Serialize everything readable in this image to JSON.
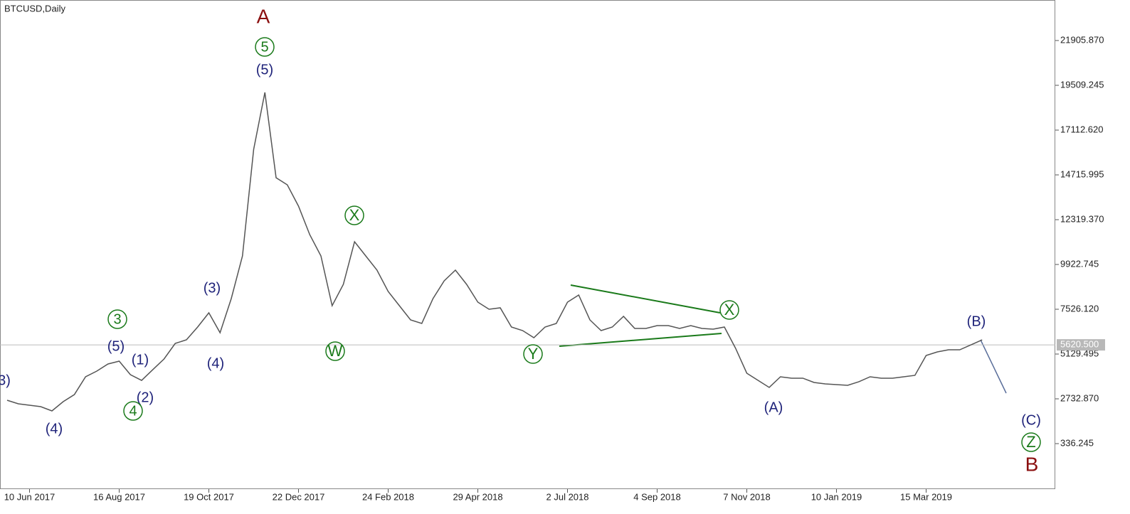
{
  "chart_data": {
    "type": "line",
    "title": "BTCUSD,Daily",
    "color": "#555555",
    "categories": [
      null,
      null,
      "10 Jun 2017",
      null,
      null,
      null,
      null,
      null,
      null,
      null,
      "16 Aug 2017",
      null,
      null,
      null,
      null,
      null,
      null,
      null,
      "19 Oct 2017",
      null,
      null,
      null,
      null,
      null,
      null,
      null,
      "22 Dec 2017",
      null,
      null,
      null,
      null,
      null,
      null,
      null,
      "24 Feb 2018",
      null,
      null,
      null,
      null,
      null,
      null,
      null,
      "29 Apr 2018",
      null,
      null,
      null,
      null,
      null,
      null,
      null,
      "2 Jul 2018",
      null,
      null,
      null,
      null,
      null,
      null,
      null,
      "4 Sep 2018",
      null,
      null,
      null,
      null,
      null,
      null,
      null,
      "7 Nov 2018",
      null,
      null,
      null,
      null,
      null,
      null,
      null,
      "10 Jan 2019",
      null,
      null,
      null,
      null,
      null,
      null,
      null,
      "15 Mar 2019",
      null,
      null,
      null,
      null,
      null
    ],
    "values": [
      2658,
      2467,
      2390,
      2314,
      2086,
      2580,
      2960,
      3913,
      4217,
      4597,
      4750,
      4027,
      3720,
      4295,
      4864,
      5700,
      5890,
      6575,
      7337,
      6270,
      8097,
      10380,
      16086,
      19128,
      14564,
      14184,
      13043,
      11521,
      10380,
      7717,
      8858,
      11140,
      10380,
      9620,
      8478,
      7717,
      6956,
      6766,
      8097,
      9049,
      9620,
      8858,
      7907,
      7527,
      7603,
      6575,
      6385,
      6005,
      6575,
      6766,
      7907,
      8288,
      6956,
      6385,
      6575,
      7146,
      6499,
      6499,
      6652,
      6652,
      6499,
      6652,
      6499,
      6462,
      6575,
      5434,
      4103,
      3723,
      3343,
      3913,
      3837,
      3837,
      3609,
      3533,
      3495,
      3457,
      3647,
      3913,
      3837,
      3837,
      3913,
      3989,
      5054,
      5244,
      5358,
      5358,
      5624,
      5890
    ],
    "ylim": [
      -2098,
      24074
    ],
    "yticks": [
      336.245,
      {
        "value": 2732.87,
        "label": "2732.870"
      },
      5129.495,
      {
        "value": 7526.12,
        "label": "7526.120"
      },
      9922.745,
      {
        "value": 12319.37,
        "label": "12319.370"
      },
      14715.995,
      {
        "value": 17112.62,
        "label": "17112.620"
      },
      19509.245,
      {
        "value": 21905.87,
        "label": "21905.870"
      }
    ],
    "last_price": {
      "value": 5620.5,
      "label": "5620.500"
    },
    "annotations": [
      {
        "text": "A",
        "color": "#8b1010",
        "circled": false
      },
      {
        "text": "5",
        "color": "#1a7a1a",
        "circled": true
      },
      {
        "text": "(5)",
        "color": "#1f237a",
        "circled": false
      },
      {
        "text": "(3)",
        "color": "#1f237a",
        "circled": false
      },
      {
        "text": "(4)",
        "color": "#1f237a",
        "circled": false
      },
      {
        "text": "3",
        "color": "#1a7a1a",
        "circled": true
      },
      {
        "text": "(5)",
        "color": "#1f237a",
        "circled": false
      },
      {
        "text": "(1)",
        "color": "#1f237a",
        "circled": false
      },
      {
        "text": "(2)",
        "color": "#1f237a",
        "circled": false
      },
      {
        "text": "4",
        "color": "#1a7a1a",
        "circled": true
      },
      {
        "text": "(4)",
        "color": "#1f237a",
        "circled": false
      },
      {
        "text": "3)",
        "color": "#1f237a",
        "circled": false
      },
      {
        "text": "X",
        "color": "#1a7a1a",
        "circled": true
      },
      {
        "text": "W",
        "color": "#1a7a1a",
        "circled": true
      },
      {
        "text": "Y",
        "color": "#1a7a1a",
        "circled": true
      },
      {
        "text": "X",
        "color": "#1a7a1a",
        "circled": true
      },
      {
        "text": "(A)",
        "color": "#1f237a",
        "circled": false
      },
      {
        "text": "(B)",
        "color": "#1f237a",
        "circled": false
      },
      {
        "text": "(C)",
        "color": "#1f237a",
        "circled": false
      },
      {
        "text": "Z",
        "color": "#1a7a1a",
        "circled": true
      },
      {
        "text": "B",
        "color": "#8b1010",
        "circled": false
      }
    ]
  }
}
